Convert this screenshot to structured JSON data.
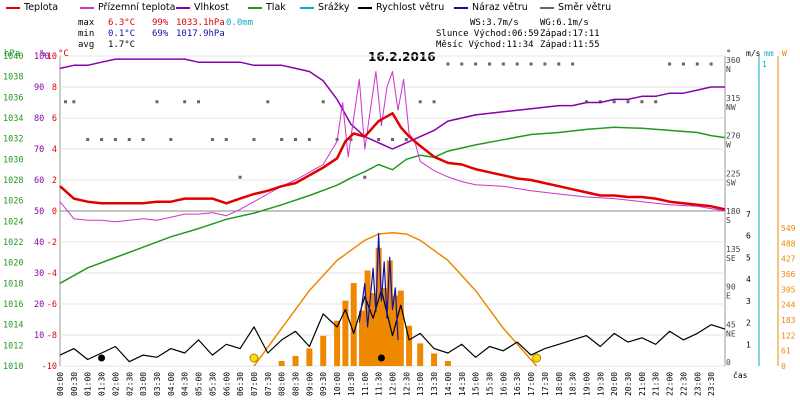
{
  "legend": [
    {
      "key": "teplota",
      "label": "Teplota",
      "color": "#e00000"
    },
    {
      "key": "prizemni",
      "label": "Přízemní teplota",
      "color": "#cc33cc"
    },
    {
      "key": "vlhkost",
      "label": "Vlhkost",
      "color": "#8800aa"
    },
    {
      "key": "tlak",
      "label": "Tlak",
      "color": "#229922"
    },
    {
      "key": "srazky",
      "label": "Srážky",
      "color": "#11aacc"
    },
    {
      "key": "rychlost",
      "label": "Rychlost větru",
      "color": "#000000"
    },
    {
      "key": "naraz",
      "label": "Náraz větru",
      "color": "#1111aa"
    },
    {
      "key": "smer",
      "label": "Směr větru",
      "color": "#666666"
    }
  ],
  "stats": {
    "max_label": "max",
    "max_temp": "6.3°C",
    "max_hum": "99%",
    "max_press": "1033.1hPa",
    "max_rain": "0.0mm",
    "min_label": "min",
    "min_temp": "0.1°C",
    "min_hum": "69%",
    "min_press": "1017.9hPa",
    "avg_label": "avg",
    "avg_temp": "1.7°C",
    "ws": "WS:3.7m/s",
    "wg": "WG:6.1m/s",
    "slunce": "Slunce Východ:06:59",
    "slunce_zapad": "Západ:17:11",
    "mesic": "Měsíc  Východ:11:34",
    "mesic_zapad": "Západ:11:55"
  },
  "chart_data": {
    "type": "line",
    "title": "16.2.2016",
    "xlabel": "čas",
    "x_ticks": [
      "00:00",
      "00:30",
      "01:00",
      "01:30",
      "02:00",
      "02:30",
      "03:00",
      "03:30",
      "04:00",
      "04:30",
      "05:00",
      "05:30",
      "06:00",
      "06:30",
      "07:00",
      "07:30",
      "08:00",
      "08:30",
      "09:00",
      "09:30",
      "10:00",
      "10:30",
      "11:00",
      "11:30",
      "12:00",
      "12:30",
      "13:00",
      "13:30",
      "14:00",
      "14:30",
      "15:00",
      "15:30",
      "16:00",
      "16:30",
      "17:00",
      "17:30",
      "18:00",
      "18:30",
      "19:00",
      "19:30",
      "20:00",
      "20:30",
      "21:00",
      "21:30",
      "22:00",
      "22:30",
      "23:00",
      "23:30"
    ],
    "axes": {
      "hpa": {
        "label": "hPa",
        "color": "#229922",
        "ticks": [
          1040,
          1038,
          1036,
          1034,
          1032,
          1030,
          1028,
          1026,
          1024,
          1022,
          1020,
          1018,
          1016,
          1014,
          1012,
          1010
        ]
      },
      "pct": {
        "label": "%",
        "color": "#8800aa",
        "ticks": [
          100,
          90,
          80,
          70,
          60,
          50,
          40,
          30,
          20,
          10
        ]
      },
      "c": {
        "label": "°C",
        "color": "#e00000",
        "ticks": [
          10,
          8,
          6,
          4,
          2,
          0,
          -2,
          -4,
          -6,
          -8,
          -10
        ]
      },
      "deg": {
        "label": "°",
        "ticks": [
          {
            "v": "360",
            "c": "N"
          },
          {
            "v": "315",
            "c": "NW"
          },
          {
            "v": "270",
            "c": "W"
          },
          {
            "v": "225",
            "c": "SW"
          },
          {
            "v": "180",
            "c": "S"
          },
          {
            "v": "135",
            "c": "SE"
          },
          {
            "v": "90",
            "c": "E"
          },
          {
            "v": "45",
            "c": "NE"
          },
          {
            "v": "0",
            "c": ""
          }
        ]
      },
      "ms": {
        "label": "m/s",
        "ticks": [
          7,
          6,
          5,
          4,
          3,
          2,
          1
        ]
      },
      "mm": {
        "label": "mm",
        "color": "#11aacc",
        "ticks": [
          1
        ]
      },
      "w": {
        "label": "W",
        "color": "#ee8800",
        "ticks": [
          549,
          488,
          427,
          366,
          305,
          244,
          183,
          122,
          61,
          0
        ]
      }
    },
    "series": [
      {
        "name": "Teplota",
        "unit": "°C",
        "color": "#e00000",
        "x": [
          0,
          0.5,
          1,
          1.5,
          2,
          2.5,
          3,
          3.5,
          4,
          4.5,
          5,
          5.5,
          6,
          6.5,
          7,
          7.5,
          8,
          8.5,
          9,
          9.5,
          10,
          10.3,
          10.6,
          11,
          11.5,
          12,
          12.3,
          12.6,
          13,
          13.5,
          14,
          14.5,
          15,
          15.5,
          16,
          16.5,
          17,
          17.5,
          18,
          18.5,
          19,
          19.5,
          20,
          20.5,
          21,
          21.5,
          22,
          22.5,
          23,
          23.5,
          24
        ],
        "y": [
          1.6,
          0.8,
          0.6,
          0.5,
          0.5,
          0.5,
          0.5,
          0.6,
          0.6,
          0.8,
          0.8,
          0.8,
          0.5,
          0.8,
          1.1,
          1.3,
          1.6,
          1.8,
          2.3,
          2.8,
          3.4,
          4.5,
          5.0,
          4.8,
          5.8,
          6.3,
          5.4,
          4.8,
          4.2,
          3.5,
          3.1,
          3.0,
          2.7,
          2.5,
          2.3,
          2.1,
          2.0,
          1.8,
          1.6,
          1.4,
          1.2,
          1.0,
          1.0,
          0.9,
          0.9,
          0.8,
          0.6,
          0.5,
          0.4,
          0.3,
          0.1
        ]
      },
      {
        "name": "Přízemní teplota",
        "unit": "°C",
        "color": "#cc33cc",
        "x": [
          0,
          0.5,
          1,
          1.5,
          2,
          2.5,
          3,
          3.5,
          4,
          4.5,
          5,
          5.5,
          6,
          6.5,
          7,
          7.5,
          8,
          8.5,
          9,
          9.5,
          10,
          10.2,
          10.4,
          10.6,
          10.8,
          11,
          11.2,
          11.4,
          11.6,
          11.8,
          12,
          12.2,
          12.4,
          12.6,
          12.8,
          13,
          13.5,
          14,
          14.5,
          15,
          16,
          17,
          18,
          19,
          20,
          21,
          22,
          23,
          24
        ],
        "y": [
          0.6,
          -0.5,
          -0.6,
          -0.6,
          -0.7,
          -0.6,
          -0.5,
          -0.6,
          -0.4,
          -0.2,
          -0.2,
          -0.1,
          -0.3,
          0.1,
          0.6,
          1.1,
          1.6,
          2.0,
          2.5,
          3.0,
          4.5,
          7.0,
          3.5,
          6.0,
          8.5,
          4.0,
          6.5,
          9.0,
          5.5,
          8.0,
          9.0,
          6.5,
          8.5,
          5.0,
          4.5,
          3.2,
          2.6,
          2.2,
          1.9,
          1.7,
          1.6,
          1.3,
          1.1,
          0.9,
          0.8,
          0.6,
          0.4,
          0.3,
          0.0
        ]
      },
      {
        "name": "Vlhkost",
        "unit": "%",
        "color": "#8800aa",
        "x": [
          0,
          0.5,
          1,
          1.5,
          2,
          2.5,
          3,
          3.5,
          4,
          4.5,
          5,
          5.5,
          6,
          6.5,
          7,
          7.5,
          8,
          8.5,
          9,
          9.5,
          10,
          10.5,
          11,
          11.5,
          12,
          12.5,
          13,
          13.5,
          14,
          14.5,
          15,
          16,
          17,
          18,
          18.5,
          19,
          19.5,
          20,
          20.5,
          21,
          21.5,
          22,
          22.5,
          23,
          23.5,
          24
        ],
        "y": [
          96,
          97,
          97,
          98,
          99,
          99,
          99,
          99,
          99,
          99,
          98,
          98,
          98,
          98,
          97,
          97,
          97,
          96,
          95,
          92,
          86,
          78,
          74,
          72,
          70,
          72,
          74,
          76,
          79,
          80,
          81,
          82,
          83,
          84,
          84,
          85,
          85,
          86,
          86,
          87,
          87,
          88,
          88,
          89,
          90,
          90
        ]
      },
      {
        "name": "Tlak",
        "unit": "hPa",
        "color": "#229922",
        "x": [
          0,
          1,
          2,
          3,
          4,
          5,
          6,
          7,
          8,
          9,
          10,
          10.5,
          11,
          11.5,
          12,
          12.5,
          13,
          13.5,
          14,
          15,
          16,
          17,
          18,
          19,
          20,
          21,
          22,
          23,
          23.5,
          24
        ],
        "y": [
          1018,
          1019.5,
          1020.5,
          1021.5,
          1022.5,
          1023.3,
          1024.2,
          1024.8,
          1025.6,
          1026.5,
          1027.5,
          1028.2,
          1028.8,
          1029.5,
          1029.0,
          1030.0,
          1030.4,
          1030.2,
          1030.8,
          1031.4,
          1031.9,
          1032.4,
          1032.6,
          1032.9,
          1033.1,
          1033.0,
          1032.8,
          1032.6,
          1032.3,
          1032.1
        ]
      },
      {
        "name": "Rychlost větru",
        "unit": "m/s",
        "color": "#000000",
        "x": [
          0,
          0.5,
          1,
          1.5,
          2,
          2.5,
          3,
          3.5,
          4,
          4.5,
          5,
          5.5,
          6,
          6.5,
          7,
          7.5,
          8,
          8.5,
          9,
          9.5,
          10,
          10.3,
          10.6,
          11,
          11.3,
          11.6,
          12,
          12.3,
          12.6,
          13,
          13.5,
          14,
          14.5,
          15,
          15.5,
          16,
          16.5,
          17,
          17.5,
          18,
          18.5,
          19,
          19.5,
          20,
          20.5,
          21,
          21.5,
          22,
          22.5,
          23,
          23.5,
          24
        ],
        "y": [
          0.5,
          0.8,
          0.3,
          0.6,
          0.9,
          0.2,
          0.5,
          0.4,
          0.8,
          0.6,
          1.2,
          0.5,
          1.0,
          0.8,
          1.8,
          0.6,
          1.2,
          1.6,
          0.9,
          2.4,
          1.8,
          2.6,
          1.5,
          3.2,
          2.2,
          3.5,
          1.4,
          2.8,
          1.2,
          1.5,
          0.8,
          0.6,
          1.0,
          0.4,
          0.9,
          0.7,
          1.1,
          0.5,
          0.8,
          1.0,
          1.2,
          1.4,
          0.9,
          1.5,
          1.1,
          1.3,
          1.0,
          1.6,
          1.2,
          1.5,
          1.9,
          1.7
        ]
      },
      {
        "name": "Náraz větru",
        "unit": "m/s",
        "color": "#1111aa",
        "x": [
          10.8,
          11.0,
          11.1,
          11.3,
          11.4,
          11.5,
          11.6,
          11.7,
          11.8,
          11.9,
          12.0,
          12.1,
          12.2
        ],
        "y": [
          2.0,
          3.8,
          1.8,
          4.5,
          2.5,
          6.1,
          3.0,
          4.8,
          2.2,
          5.0,
          2.6,
          3.6,
          1.2
        ]
      },
      {
        "name": "Slunce (W)",
        "unit": "W",
        "color": "#ee8800",
        "x": [
          7.0,
          8,
          9,
          10,
          11,
          11.5,
          12,
          12.5,
          13,
          14,
          15,
          16,
          17.2
        ],
        "y": [
          0,
          150,
          300,
          420,
          500,
          525,
          530,
          525,
          500,
          420,
          300,
          150,
          0
        ]
      }
    ],
    "radiation_bars": {
      "unit": "W",
      "color": "#ee8800",
      "x": [
        8,
        8.5,
        9,
        9.5,
        10,
        10.3,
        10.6,
        10.9,
        11.1,
        11.3,
        11.5,
        11.7,
        11.9,
        12.1,
        12.3,
        12.6,
        13,
        13.5,
        14
      ],
      "y": [
        20,
        40,
        70,
        120,
        180,
        260,
        330,
        220,
        380,
        290,
        470,
        310,
        420,
        280,
        300,
        160,
        90,
        50,
        20
      ]
    },
    "wind_direction": {
      "unit": "°",
      "x": [
        0.2,
        0.5,
        1,
        1.5,
        2,
        2.5,
        3,
        3.5,
        4,
        4.5,
        5,
        5.5,
        6,
        6.5,
        7,
        7.5,
        8,
        8.5,
        9,
        9.5,
        10,
        10.5,
        11,
        11.5,
        12,
        12.5,
        13,
        13.5,
        14,
        14.5,
        15,
        15.5,
        16,
        16.5,
        17,
        17.5,
        18,
        18.5,
        19,
        19.5,
        20,
        20.5,
        21,
        21.5,
        22,
        22.5,
        23,
        23.5
      ],
      "y": [
        315,
        315,
        270,
        270,
        270,
        270,
        270,
        315,
        270,
        315,
        315,
        270,
        270,
        225,
        270,
        315,
        270,
        270,
        270,
        315,
        270,
        270,
        225,
        270,
        270,
        270,
        315,
        315,
        360,
        360,
        360,
        360,
        360,
        360,
        360,
        360,
        360,
        360,
        315,
        315,
        315,
        315,
        315,
        315,
        360,
        360,
        360,
        360
      ]
    },
    "markers": [
      {
        "type": "sun",
        "label": "sunrise",
        "x": 7.0
      },
      {
        "type": "sun",
        "label": "sunset",
        "x": 17.2
      },
      {
        "type": "moon",
        "label": "moon",
        "x": 11.6
      },
      {
        "type": "moon",
        "label": "moon-start",
        "x": 1.5
      }
    ]
  }
}
